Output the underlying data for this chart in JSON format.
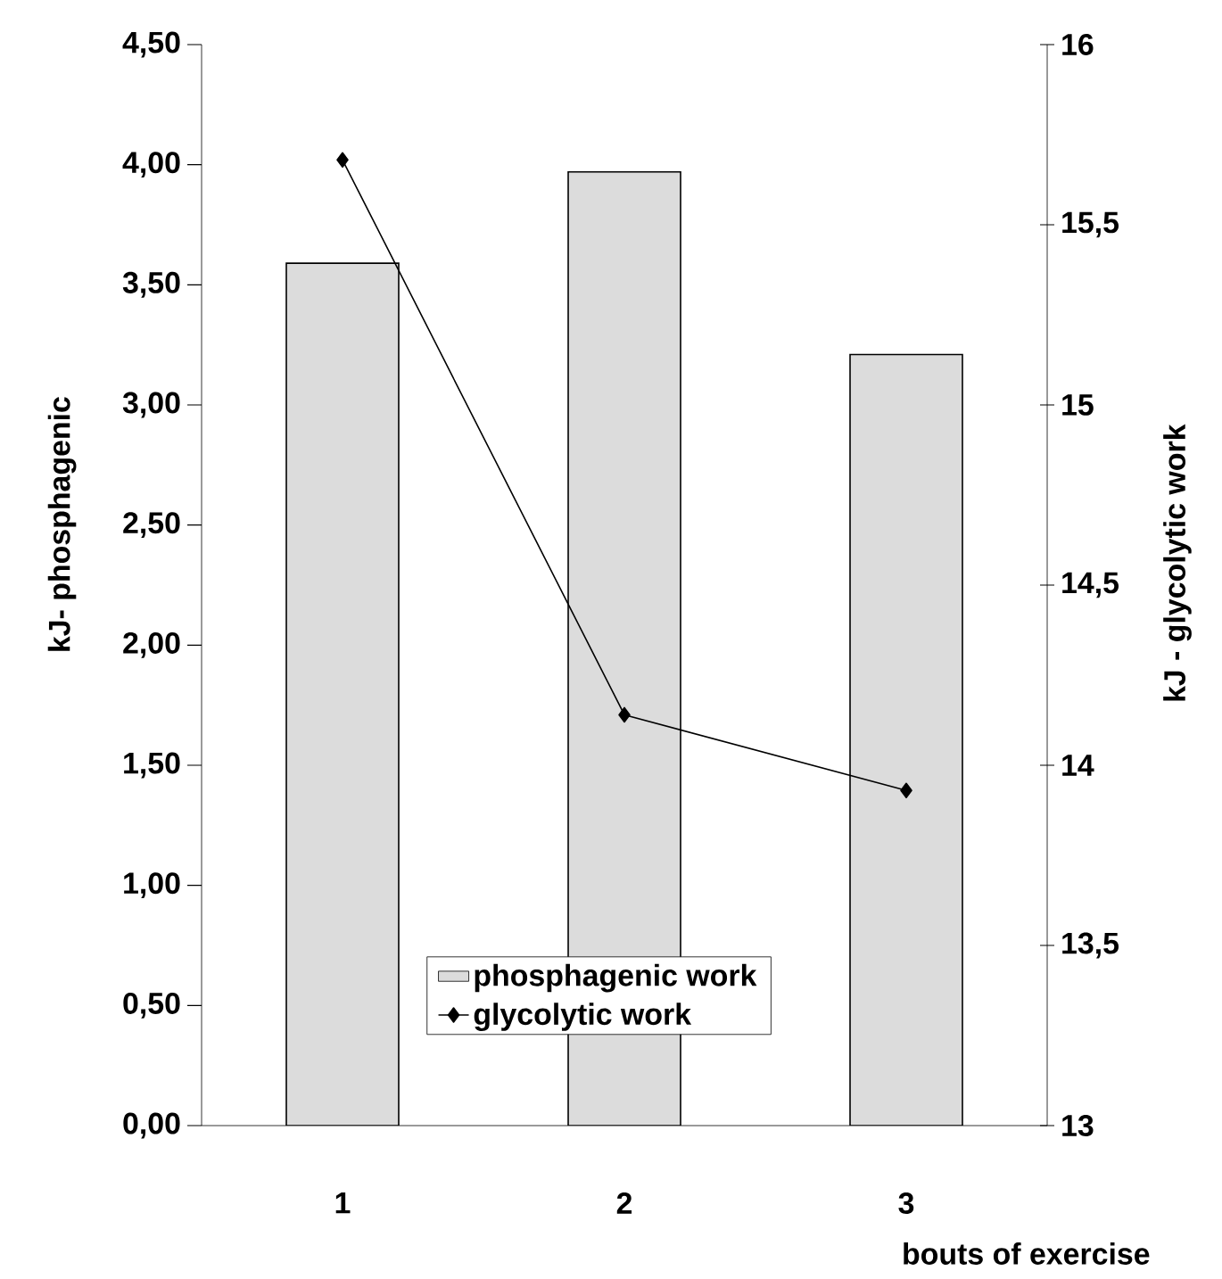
{
  "chart_data": {
    "type": "bar",
    "categories": [
      "1",
      "2",
      "3"
    ],
    "xlabel": "bouts of exercise",
    "ylabel": "kJ- phosphagenic",
    "y2label": "kJ - glycolytic work",
    "series": [
      {
        "name": "phosphagenic work",
        "color": "#dcdcdc",
        "values": [
          3.59,
          3.97,
          3.21
        ]
      },
      {
        "name": "glycolytic work",
        "type": "line",
        "axis": "y2",
        "color": "#000000",
        "marker": "diamond",
        "values": [
          15.68,
          14.14,
          13.93
        ]
      }
    ],
    "ylim": [
      0,
      4.5
    ],
    "yticks": [
      {
        "value": 0,
        "label": "0,00"
      },
      {
        "value": 0.5,
        "label": "0,50"
      },
      {
        "value": 1,
        "label": "1,00"
      },
      {
        "value": 1.5,
        "label": "1,50"
      },
      {
        "value": 2,
        "label": "2,00"
      },
      {
        "value": 2.5,
        "label": "2,50"
      },
      {
        "value": 3,
        "label": "3,00"
      },
      {
        "value": 3.5,
        "label": "3,50"
      },
      {
        "value": 4,
        "label": "4,00"
      },
      {
        "value": 4.5,
        "label": "4,50"
      }
    ],
    "y2lim": [
      13,
      16
    ],
    "y2ticks": [
      13,
      {
        "value": 13.5,
        "label": "13,5"
      },
      14,
      {
        "value": 14.5,
        "label": "14,5"
      },
      15,
      {
        "value": 15.5,
        "label": "15,5"
      },
      16
    ],
    "legend": "bottom"
  }
}
